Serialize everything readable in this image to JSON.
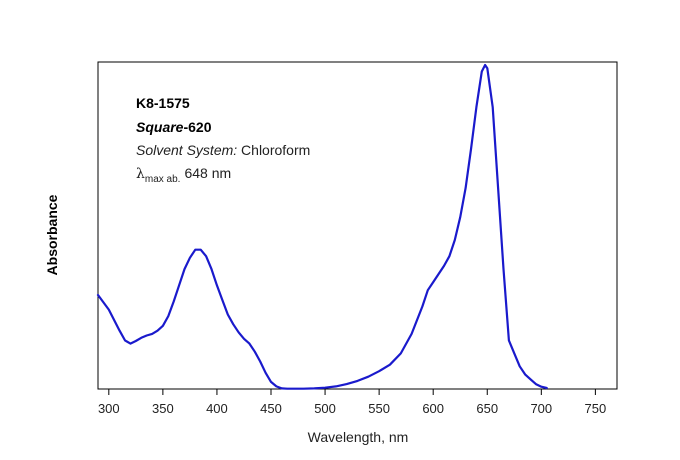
{
  "chart_data": {
    "type": "line",
    "title": "",
    "xlabel": "Wavelength, nm",
    "ylabel": "Absorbance",
    "xlim": [
      290,
      770
    ],
    "ylim": [
      0,
      1
    ],
    "xticks": [
      300,
      350,
      400,
      450,
      500,
      550,
      600,
      650,
      700,
      750
    ],
    "x_tick_labels": [
      "300",
      "350",
      "400",
      "450",
      "500",
      "550",
      "600",
      "650",
      "700",
      "750"
    ],
    "yticks_shown": false,
    "grid": false,
    "legend": "none",
    "line_color": "#1a1acc",
    "annotations": {
      "sample_id": "K8-1575",
      "compound_name": "Square",
      "compound_suffix": "-620",
      "solvent_label": "Solvent System:",
      "solvent_value": "Chloroform",
      "lambda_symbol": "λ",
      "lambda_subscript": "max ab.",
      "lambda_value": "648 nm"
    },
    "series": [
      {
        "x": [
          290,
          300,
          310,
          315,
          320,
          325,
          330,
          335,
          340,
          345,
          350,
          355,
          360,
          365,
          370,
          375,
          380,
          385,
          390,
          395,
          400,
          405,
          410,
          415,
          420,
          425,
          430,
          435,
          440,
          445,
          450,
          455,
          460,
          465,
          470,
          480,
          490,
          500,
          510,
          520,
          530,
          540,
          550,
          560,
          570,
          580,
          590,
          595,
          600,
          605,
          610,
          615,
          620,
          625,
          630,
          635,
          640,
          645,
          648,
          650,
          655,
          660,
          665,
          670,
          675,
          680,
          685,
          690,
          695,
          700,
          705
        ],
        "y": [
          0.29,
          0.245,
          0.18,
          0.15,
          0.14,
          0.148,
          0.158,
          0.165,
          0.17,
          0.18,
          0.195,
          0.225,
          0.27,
          0.32,
          0.37,
          0.405,
          0.43,
          0.43,
          0.41,
          0.37,
          0.32,
          0.275,
          0.23,
          0.2,
          0.175,
          0.155,
          0.14,
          0.115,
          0.085,
          0.05,
          0.022,
          0.008,
          0.002,
          0.001,
          0.001,
          0.001,
          0.002,
          0.004,
          0.008,
          0.015,
          0.025,
          0.038,
          0.055,
          0.075,
          0.11,
          0.17,
          0.255,
          0.305,
          0.33,
          0.355,
          0.38,
          0.41,
          0.46,
          0.53,
          0.62,
          0.74,
          0.87,
          0.98,
          1.0,
          0.99,
          0.87,
          0.62,
          0.37,
          0.15,
          0.11,
          0.07,
          0.045,
          0.03,
          0.015,
          0.007,
          0.003
        ]
      }
    ]
  }
}
